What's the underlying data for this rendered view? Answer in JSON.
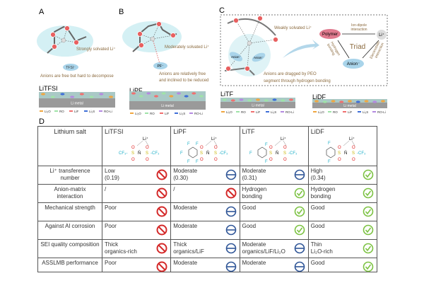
{
  "panels": {
    "a": {
      "label": "A",
      "solvation": "Strongly solvated Li⁺",
      "anion": "TFSI⁻",
      "note": "Anions are free but hard to decompose",
      "sei_title": "LiTFSI"
    },
    "b": {
      "label": "B",
      "solvation": "Moderately solvated Li⁺",
      "anion": "PF⁻",
      "note1": "Anions are relatively free",
      "note2": "and inclined to be reduced",
      "sei_title": "LiPF"
    },
    "c": {
      "label": "C",
      "solvation": "Weakly solvated Li⁺",
      "anion1": "Anion⁻",
      "anion2": "Anion⁻",
      "note1": "Anions are dragged by PEO",
      "note2": "segment through hydrogen bonding",
      "sei_title": "LiTF",
      "triad": {
        "center": "Triad",
        "polymer": "Polymer",
        "li": "Li⁺",
        "anion": "Anion⁻",
        "top": [
          "Ion-dipole",
          "interaction"
        ],
        "left": [
          "Hydrogen",
          "bonding"
        ],
        "right": [
          "Electrostatic",
          "interaction"
        ]
      }
    },
    "d_sei_title": "LiDF",
    "li_metal": "Li metal",
    "legend": [
      "Li₂O",
      "RO",
      "LiF",
      "Li₂S",
      "RO-Li"
    ],
    "legend_colors": [
      "#f0a640",
      "#9fe3a8",
      "#f07070",
      "#3f6fd8",
      "#b48ae0"
    ]
  },
  "table": {
    "label": "D",
    "header": [
      "Lithium salt",
      "LiTFSI",
      "LiPF",
      "LiTF",
      "LiDF"
    ],
    "rows": [
      {
        "label": "Li⁺ transference number",
        "cells": [
          [
            "Low",
            "(0.19)"
          ],
          [
            "Moderate",
            "(0.30)"
          ],
          [
            "Moderate",
            "(0.31)"
          ],
          [
            "High",
            "(0.34)"
          ]
        ],
        "ratings": [
          "bad",
          "mid",
          "mid",
          "good"
        ]
      },
      {
        "label": "Anion-matrix interaction",
        "cells": [
          [
            "/"
          ],
          [
            "/"
          ],
          [
            "Hydrogen",
            "bonding"
          ],
          [
            "Hydrogen",
            "bonding"
          ]
        ],
        "ratings": [
          "bad",
          "bad",
          "good",
          "good"
        ]
      },
      {
        "label": "Mechanical strength",
        "cells": [
          [
            "Poor"
          ],
          [
            "Moderate"
          ],
          [
            "Good"
          ],
          [
            "Good"
          ]
        ],
        "ratings": [
          "bad",
          "mid",
          "good",
          "good"
        ]
      },
      {
        "label": "Against Al corrosion",
        "cells": [
          [
            "Poor"
          ],
          [
            "Moderate"
          ],
          [
            "Good"
          ],
          [
            "Good"
          ]
        ],
        "ratings": [
          "bad",
          "mid",
          "good",
          "good"
        ]
      },
      {
        "label": "SEI quality composition",
        "cells": [
          [
            "Thick",
            "organics-rich"
          ],
          [
            "Thick",
            "organics/LiF"
          ],
          [
            "Moderate",
            "organics/LiF/Li₂O"
          ],
          [
            "Thin",
            "Li₂O-rich"
          ]
        ],
        "ratings": [
          "bad",
          "mid",
          "mid",
          "good"
        ]
      },
      {
        "label": "ASSLMB performance",
        "cells": [
          [
            "Poor"
          ],
          [
            "Moderate"
          ],
          [
            "Moderate"
          ],
          [
            "Good"
          ]
        ],
        "ratings": [
          "bad",
          "mid",
          "mid",
          "good"
        ]
      }
    ],
    "rating_colors": {
      "bad": "#d42a2a",
      "mid": "#2f5597",
      "good": "#7cc242"
    },
    "rating_icons": {
      "bad": "prohibited-icon",
      "mid": "minus-circle-icon",
      "good": "check-circle-icon"
    },
    "structure_labels": {
      "li": "Li⁺",
      "cf3": "CF₃",
      "f": "F",
      "o": "O",
      "s": "S",
      "n": "N̄"
    }
  }
}
